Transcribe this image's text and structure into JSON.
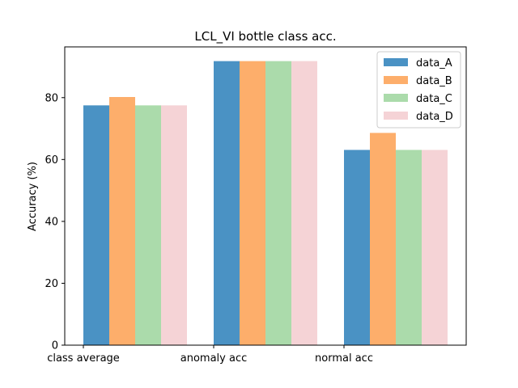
{
  "chart_data": {
    "type": "bar",
    "title": "LCL_VI bottle class acc.",
    "xlabel": "",
    "ylabel": "Accuracy (%)",
    "categories": [
      "class average",
      "anomaly acc",
      "normal acc"
    ],
    "series": [
      {
        "name": "data_A",
        "color": "#4a92c4",
        "values": [
          77.5,
          91.8,
          63.1
        ]
      },
      {
        "name": "data_B",
        "color": "#fdae6b",
        "values": [
          80.2,
          91.8,
          68.6
        ]
      },
      {
        "name": "data_C",
        "color": "#abdbab",
        "values": [
          77.5,
          91.8,
          63.1
        ]
      },
      {
        "name": "data_D",
        "color": "#f5d3d6",
        "values": [
          77.5,
          91.8,
          63.1
        ]
      }
    ],
    "ylim": [
      0,
      96.4
    ],
    "yticks": [
      0,
      20,
      40,
      60,
      80
    ],
    "grid": false,
    "legend_position": "top-right"
  }
}
